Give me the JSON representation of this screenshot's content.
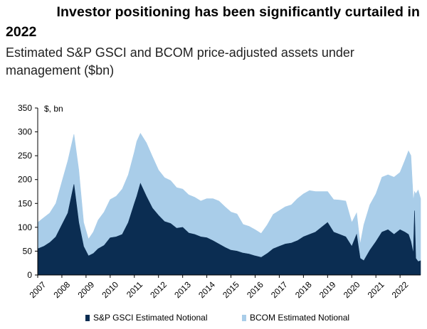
{
  "header": {
    "title_line1": "Investor positioning has been significantly curtailed in",
    "title_line2": "2022",
    "subtitle": "Estimated S&P GSCI and BCOM price-adjusted assets under management ($bn)"
  },
  "colors": {
    "gsci": "#0b2d52",
    "bcom": "#a9cde9"
  },
  "chart_data": {
    "type": "area",
    "stacked": true,
    "unit_label": "$, bn",
    "ylim": [
      0,
      350
    ],
    "y_ticks": [
      "0",
      "50",
      "100",
      "150",
      "200",
      "250",
      "300",
      "350"
    ],
    "x_ticks": [
      "2007",
      "2008",
      "2009",
      "2010",
      "2011",
      "2012",
      "2013",
      "2014",
      "2015",
      "2016",
      "2017",
      "2018",
      "2019",
      "2020",
      "2021",
      "2022"
    ],
    "xlim": [
      2007.0,
      2022.85
    ],
    "x": [
      2007.0,
      2007.25,
      2007.5,
      2007.75,
      2008.0,
      2008.25,
      2008.5,
      2008.7,
      2008.9,
      2009.1,
      2009.3,
      2009.5,
      2009.75,
      2010.0,
      2010.25,
      2010.5,
      2010.75,
      2011.0,
      2011.1,
      2011.25,
      2011.5,
      2011.75,
      2012.0,
      2012.25,
      2012.5,
      2012.75,
      2013.0,
      2013.25,
      2013.5,
      2013.75,
      2014.0,
      2014.25,
      2014.5,
      2014.75,
      2015.0,
      2015.25,
      2015.5,
      2015.75,
      2016.0,
      2016.25,
      2016.5,
      2016.75,
      2017.0,
      2017.25,
      2017.5,
      2017.75,
      2018.0,
      2018.25,
      2018.5,
      2018.75,
      2019.0,
      2019.25,
      2019.5,
      2019.75,
      2020.0,
      2020.2,
      2020.35,
      2020.5,
      2020.75,
      2021.0,
      2021.25,
      2021.5,
      2021.75,
      2022.0,
      2022.2,
      2022.35,
      2022.45,
      2022.55,
      2022.6,
      2022.65,
      2022.75,
      2022.85
    ],
    "series": [
      {
        "name": "S&P GSCI Estimated Notional",
        "values": [
          55,
          60,
          68,
          80,
          105,
          130,
          190,
          110,
          60,
          40,
          45,
          55,
          62,
          78,
          80,
          85,
          110,
          150,
          165,
          192,
          165,
          140,
          125,
          112,
          108,
          98,
          100,
          88,
          85,
          80,
          78,
          72,
          65,
          58,
          52,
          50,
          46,
          44,
          40,
          37,
          45,
          55,
          60,
          65,
          67,
          72,
          80,
          85,
          90,
          100,
          110,
          90,
          85,
          80,
          60,
          85,
          35,
          30,
          52,
          70,
          90,
          95,
          85,
          95,
          90,
          85,
          70,
          45,
          135,
          35,
          28,
          30
        ]
      },
      {
        "name": "BCOM Estimated Notional",
        "values": [
          55,
          60,
          62,
          70,
          90,
          110,
          105,
          110,
          50,
          35,
          45,
          60,
          70,
          80,
          85,
          95,
          100,
          108,
          115,
          105,
          112,
          108,
          95,
          92,
          90,
          85,
          80,
          80,
          78,
          75,
          82,
          88,
          90,
          85,
          80,
          78,
          60,
          58,
          55,
          50,
          60,
          72,
          75,
          78,
          80,
          88,
          90,
          92,
          85,
          75,
          65,
          68,
          72,
          75,
          50,
          45,
          30,
          75,
          95,
          100,
          115,
          115,
          120,
          120,
          150,
          175,
          180,
          110,
          40,
          135,
          150,
          130
        ]
      }
    ]
  }
}
